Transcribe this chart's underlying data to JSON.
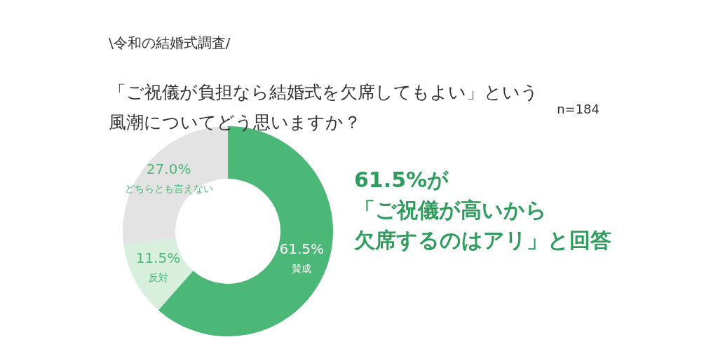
{
  "chart_data": {
    "type": "donut",
    "subtitle": "\\令和の結婚式調査/",
    "title": "「ご祝儀が負担なら結婚式を欠席してもよい」という風潮についてどう思いますか？",
    "categories": [
      "賛成",
      "反対",
      "どちらとも言えない"
    ],
    "values": [
      61.5,
      11.5,
      27.0
    ],
    "colors": [
      "#4cb877",
      "#d8efdd",
      "#e3e3e3"
    ],
    "value_labels": [
      "61.5%",
      "11.5%",
      "27.0%"
    ],
    "annotations": [
      "n=184",
      "61.5%が",
      "「ご祝儀が高いから",
      "欠席するのはアリ」と回答"
    ]
  }
}
